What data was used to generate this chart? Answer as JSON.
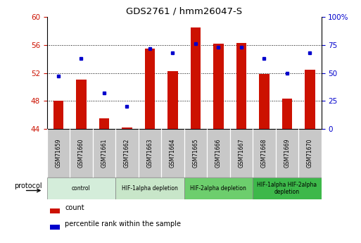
{
  "title": "GDS2761 / hmm26047-S",
  "samples": [
    "GSM71659",
    "GSM71660",
    "GSM71661",
    "GSM71662",
    "GSM71663",
    "GSM71664",
    "GSM71665",
    "GSM71666",
    "GSM71667",
    "GSM71668",
    "GSM71669",
    "GSM71670"
  ],
  "counts": [
    48.0,
    51.0,
    45.5,
    44.2,
    55.5,
    52.3,
    58.5,
    56.2,
    56.3,
    51.8,
    48.3,
    52.5
  ],
  "percentile_ranks": [
    47,
    63,
    32,
    20,
    72,
    68,
    76,
    73,
    73,
    63,
    50,
    68
  ],
  "ylim_left": [
    44,
    60
  ],
  "ylim_right": [
    0,
    100
  ],
  "yticks_left": [
    44,
    48,
    52,
    56,
    60
  ],
  "yticks_right": [
    0,
    25,
    50,
    75,
    100
  ],
  "ytick_labels_right": [
    "0",
    "25",
    "50",
    "75",
    "100%"
  ],
  "bar_color": "#cc1100",
  "dot_color": "#0000cc",
  "protocol_groups": [
    {
      "label": "control",
      "start": 0,
      "end": 2,
      "color": "#d4edda"
    },
    {
      "label": "HIF-1alpha depletion",
      "start": 3,
      "end": 5,
      "color": "#c8e6c9"
    },
    {
      "label": "HIF-2alpha depletion",
      "start": 6,
      "end": 8,
      "color": "#6dce6d"
    },
    {
      "label": "HIF-1alpha HIF-2alpha\ndepletion",
      "start": 9,
      "end": 11,
      "color": "#3db84a"
    }
  ],
  "legend_count_label": "count",
  "legend_pct_label": "percentile rank within the sample",
  "xlabel_protocol": "protocol",
  "tick_label_color_left": "#cc1100",
  "tick_label_color_right": "#0000cc",
  "bar_width": 0.45,
  "xticklabel_bg": "#cccccc",
  "fig_width": 5.13,
  "fig_height": 3.45,
  "dpi": 100
}
